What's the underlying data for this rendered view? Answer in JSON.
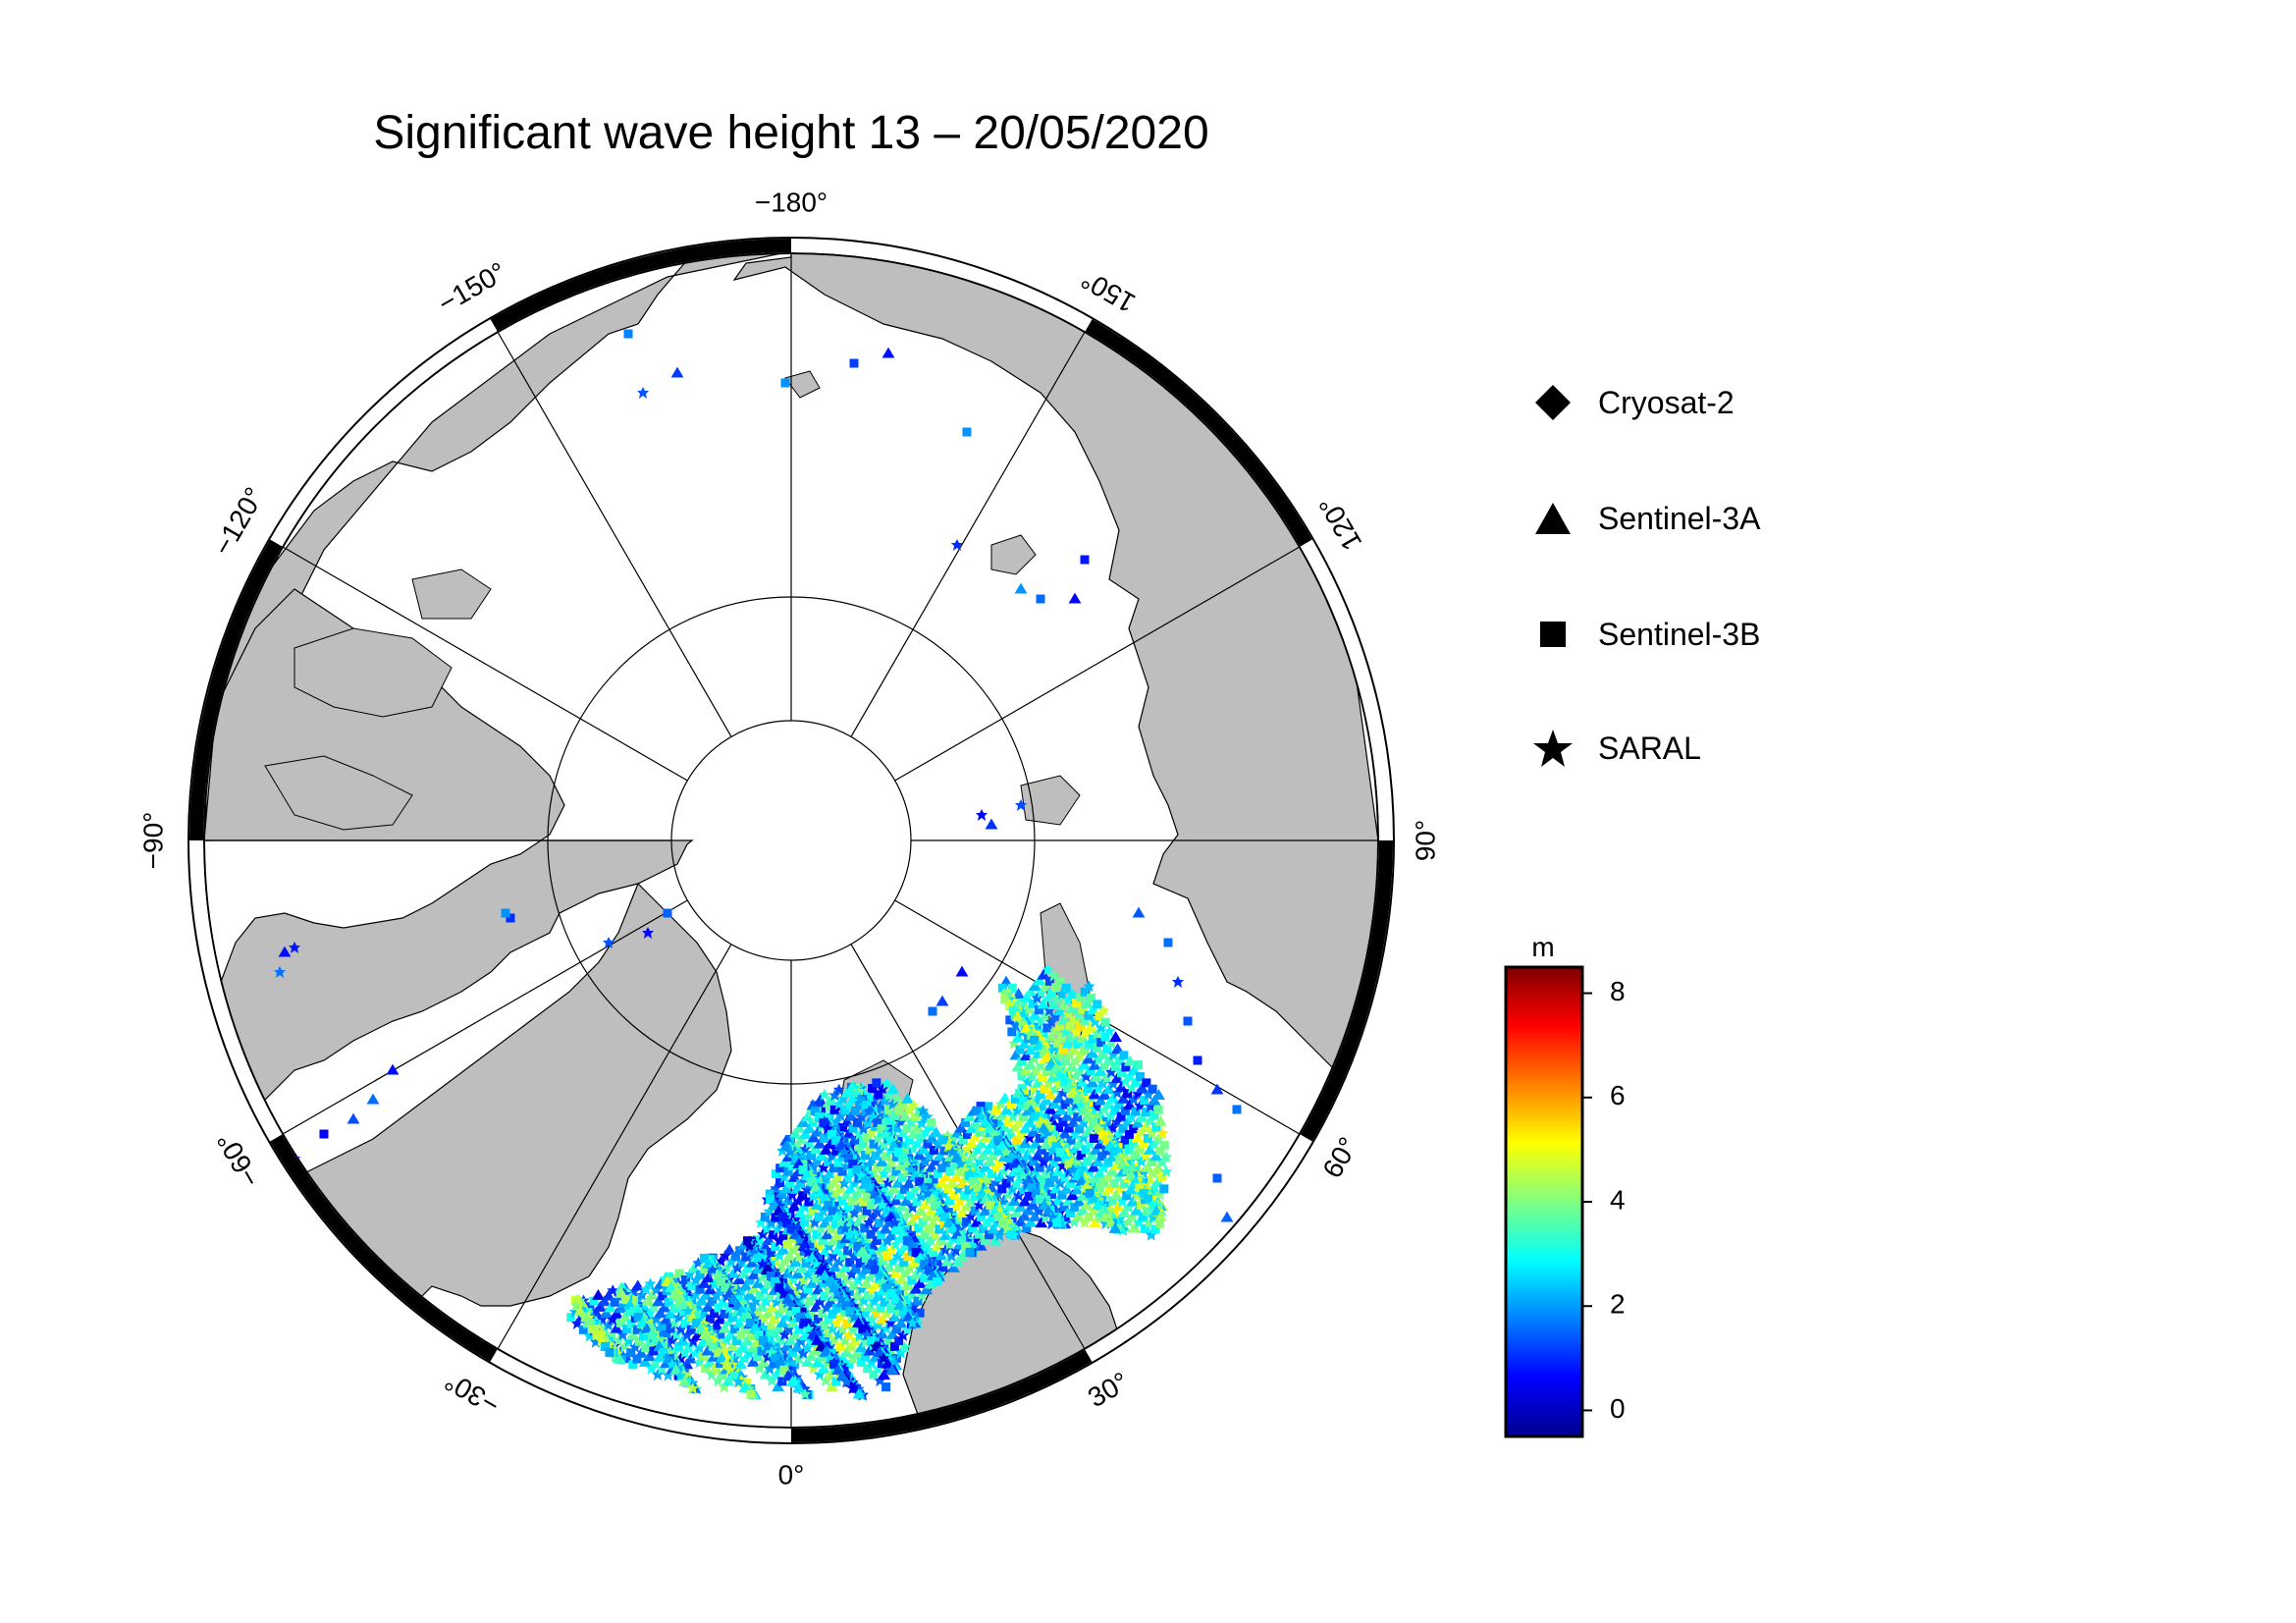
{
  "title": "Significant wave height 13 – 20/05/2020",
  "map": {
    "projection": "north polar stereographic",
    "longitude_labels": [
      {
        "lon": -180,
        "text": "−180°"
      },
      {
        "lon": 150,
        "text": "150°"
      },
      {
        "lon": 120,
        "text": "120°"
      },
      {
        "lon": 90,
        "text": "90°"
      },
      {
        "lon": 60,
        "text": "60°"
      },
      {
        "lon": 30,
        "text": "30°"
      },
      {
        "lon": 0,
        "text": "0°"
      },
      {
        "lon": -30,
        "text": "−30°"
      },
      {
        "lon": -60,
        "text": "−60°"
      },
      {
        "lon": -90,
        "text": "−90°"
      },
      {
        "lon": -120,
        "text": "−120°"
      },
      {
        "lon": -150,
        "text": "−150°"
      }
    ],
    "colors": {
      "land": "#bebebe",
      "ocean": "#ffffff",
      "graticule": "#000000"
    }
  },
  "legend": {
    "items": [
      {
        "label": "Cryosat-2",
        "symbol": "diamond-icon"
      },
      {
        "label": "Sentinel-3A",
        "symbol": "triangle-icon"
      },
      {
        "label": "Sentinel-3B",
        "symbol": "square-icon"
      },
      {
        "label": "SARAL",
        "symbol": "star-icon"
      }
    ]
  },
  "colorbar": {
    "unit": "m",
    "range": [
      -0.5,
      8.5
    ],
    "ticks": [
      {
        "value": 8,
        "label": "8"
      },
      {
        "value": 6,
        "label": "6"
      },
      {
        "value": 4,
        "label": "4"
      },
      {
        "value": 2,
        "label": "2"
      },
      {
        "value": 0,
        "label": "0"
      }
    ],
    "colormap": [
      "#00008f",
      "#0000ff",
      "#0080ff",
      "#00ffff",
      "#80ff80",
      "#ffff00",
      "#ff8000",
      "#ff0000",
      "#800000"
    ]
  }
}
